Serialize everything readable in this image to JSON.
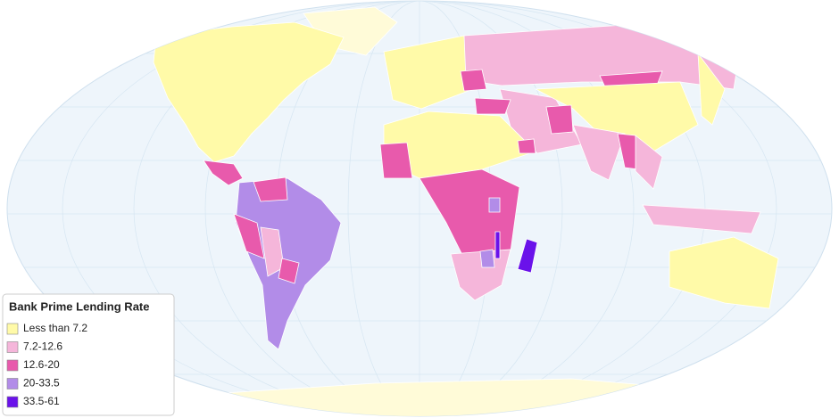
{
  "legend": {
    "title": "Bank Prime Lending Rate",
    "items": [
      {
        "label": "Less than 7.2",
        "color": "#fffaa8"
      },
      {
        "label": "7.2-12.6",
        "color": "#f5b6da"
      },
      {
        "label": "12.6-20",
        "color": "#e85aac"
      },
      {
        "label": "20-33.5",
        "color": "#b28ce8"
      },
      {
        "label": "33.5-61",
        "color": "#6a12ea"
      }
    ]
  }
}
